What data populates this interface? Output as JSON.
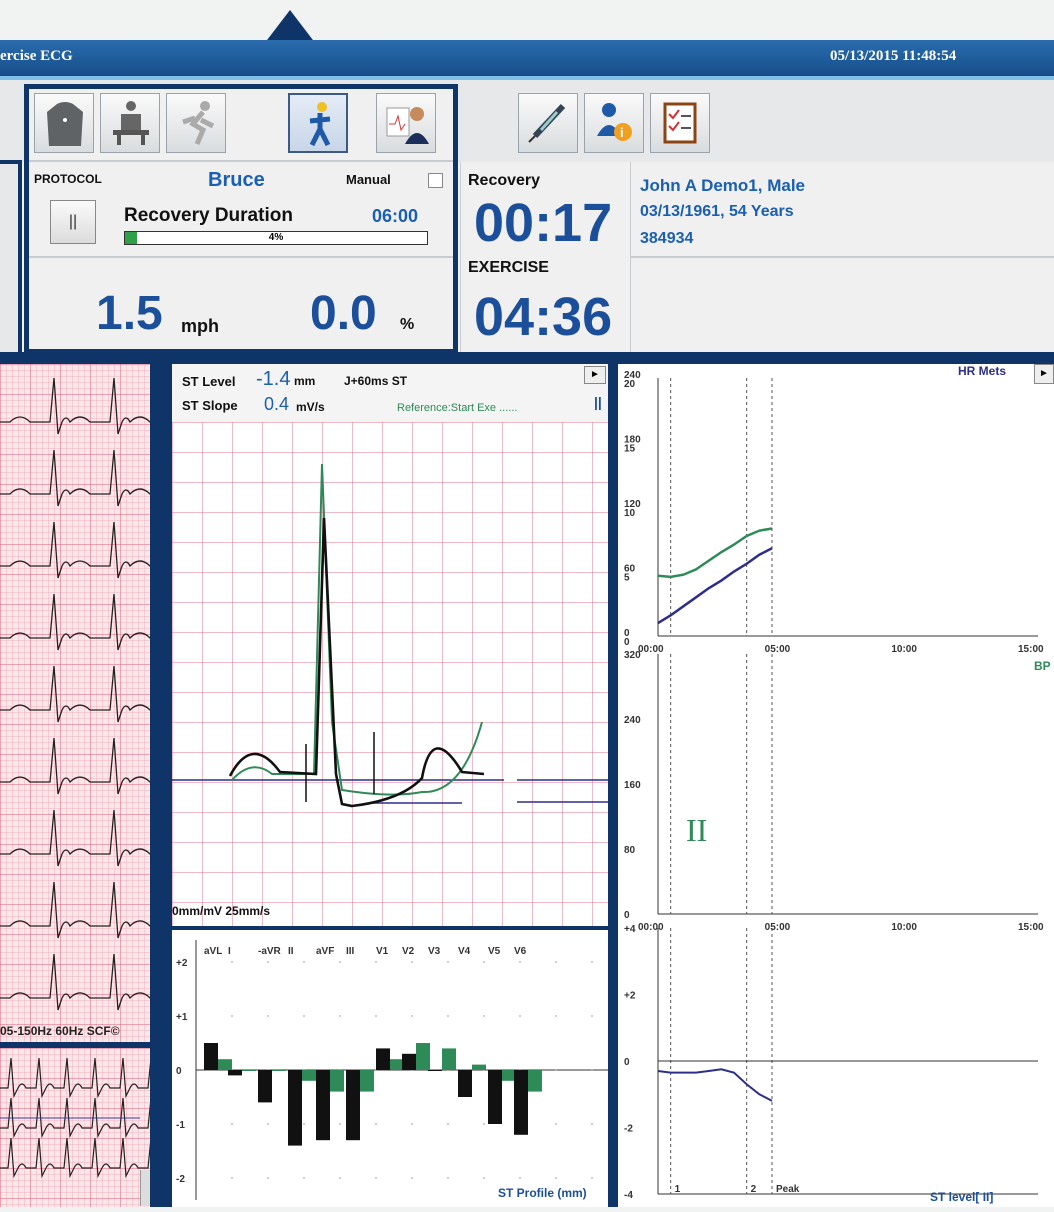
{
  "window": {
    "title": "ercise ECG",
    "datetime": "05/13/2015 11:48:54"
  },
  "toolbar": {
    "left_icons": [
      "torso-icon",
      "patient-seated-icon",
      "running-person-icon",
      "walking-person-icon",
      "doctor-report-icon"
    ],
    "right_icons": [
      "syringe-icon",
      "user-info-icon",
      "clipboard-checklist-icon"
    ]
  },
  "protocol": {
    "label": "PROTOCOL",
    "name": "Bruce",
    "manual_label": "Manual",
    "pause_glyph": "||",
    "stage_label": "Recovery Duration",
    "stage_time": "06:00",
    "progress_text": "4%",
    "progress_fraction": 0.04,
    "speed": "1.5",
    "speed_unit": "mph",
    "grade": "0.0",
    "grade_unit": "%"
  },
  "timers": {
    "recovery_label": "Recovery",
    "recovery_time": "00:17",
    "exercise_label": "EXERCISE",
    "exercise_time": "04:36"
  },
  "patient": {
    "name": "John A Demo1, Male",
    "dob_age": "03/13/1961, 54 Years",
    "id": "384934"
  },
  "ecg_strip": {
    "footer": "05-150Hz  60Hz   SCF©"
  },
  "st_panel": {
    "level_label": "ST Level",
    "level_value": "-1.4",
    "level_unit": "mm",
    "slope_label": "ST Slope",
    "slope_value": "0.4",
    "slope_unit": "mV/s",
    "point_label": "J+60ms ST",
    "reference_label": "Reference:Start Exe ......",
    "scale_label": "0mm/mV  25mm/s",
    "play_glyph": "►",
    "pause_glyph": "||"
  },
  "st_profile": {
    "title": "ST Profile (mm)",
    "leads": [
      "aVL",
      "I",
      "-aVR",
      "II",
      "aVF",
      "III",
      "V1",
      "V2",
      "V3",
      "V4",
      "V5",
      "V6"
    ],
    "y_ticks": [
      "+2",
      "+1",
      "0",
      "-1",
      "-2"
    ],
    "chart_data": {
      "type": "bar",
      "categories": [
        "aVL",
        "I",
        "-aVR",
        "II",
        "aVF",
        "III",
        "V1",
        "V2",
        "V3",
        "V4",
        "V5",
        "V6"
      ],
      "ylim": [
        -2.2,
        2.2
      ],
      "series": [
        {
          "values": [
            0.5,
            -0.1,
            -0.6,
            -1.4,
            -1.3,
            -1.3,
            0.4,
            0.3,
            0,
            -0.5,
            -1.0,
            -1.2
          ]
        },
        {
          "values": [
            0.2,
            0,
            0,
            -0.2,
            -0.4,
            -0.4,
            0.2,
            0.5,
            0.4,
            0.1,
            -0.2,
            -0.4
          ]
        }
      ],
      "colors": [
        "#111111",
        "#2e8b57"
      ]
    }
  },
  "trends": {
    "hr_legend": "HR Mets",
    "play_glyph": "►",
    "hr_yticks": [
      "240\n20",
      "180\n15",
      "120\n10",
      "60\n5",
      "0\n0"
    ],
    "time_ticks": [
      "00:00",
      "05:00",
      "10:00",
      "15:00"
    ],
    "bp_legend": "BP",
    "bp_yticks": [
      "320",
      "240",
      "160",
      "80",
      "0"
    ],
    "bp_marker": "II",
    "st_yticks": [
      "+4",
      "+2",
      "0",
      "-2",
      "-4"
    ],
    "st_stage_labels": [
      "1",
      "2",
      "Peak"
    ],
    "st_title": "ST level[ II]",
    "chart_data": [
      {
        "type": "line",
        "title": "",
        "x": [
          "00:00",
          "00:30",
          "01:00",
          "01:30",
          "02:00",
          "02:30",
          "03:00",
          "03:30",
          "04:00",
          "04:30"
        ],
        "series": [
          {
            "name": "HR",
            "values": [
              56,
              55,
              57,
              62,
              70,
              78,
              85,
              93,
              98,
              100
            ]
          },
          {
            "name": "Mets",
            "values": [
              1.0,
              1.6,
              2.3,
              3.0,
              3.7,
              4.3,
              5.0,
              5.6,
              6.3,
              6.8
            ]
          }
        ],
        "ylim": [
          0,
          240
        ],
        "xlim": [
          "00:00",
          "15:00"
        ],
        "colors": [
          "#2e8b57",
          "#2d2e8a"
        ]
      },
      {
        "type": "line",
        "title": "",
        "x": [],
        "series": [],
        "ylim": [
          0,
          320
        ],
        "xlim": [
          "00:00",
          "15:00"
        ]
      },
      {
        "type": "line",
        "title": "ST level[ II]",
        "x": [
          "00:00",
          "00:30",
          "01:00",
          "01:30",
          "02:00",
          "02:30",
          "03:00",
          "03:30",
          "04:00",
          "04:30"
        ],
        "series": [
          {
            "values": [
              -0.3,
              -0.35,
              -0.35,
              -0.35,
              -0.3,
              -0.25,
              -0.35,
              -0.7,
              -1.0,
              -1.2
            ]
          }
        ],
        "ylim": [
          -4,
          4
        ],
        "colors": [
          "#2d2e8a"
        ]
      }
    ]
  }
}
